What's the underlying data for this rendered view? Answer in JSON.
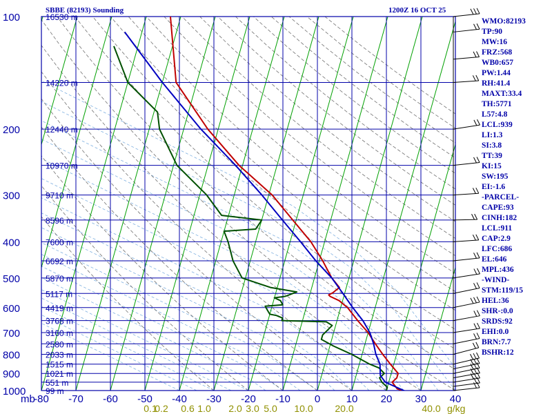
{
  "header": {
    "title": "SBBE (82193) Sounding",
    "datetime": "1200Z 16 OCT 25"
  },
  "indices": [
    "WMO:82193",
    "TP:90",
    "MW:16",
    "FRZ:568",
    "WB0:657",
    "PW:1.44",
    "RH:41.4",
    "MAXT:33.4",
    "TH:5771",
    "L57:4.8",
    "LCL:939",
    "LI:1.3",
    "SI:3.8",
    "TT:39",
    "KI:15",
    "SW:195",
    "EI:-1.6",
    "-PARCEL-",
    "CAPE:93",
    "CINH:182",
    "LCL:911",
    "CAP:2.9",
    "LFC:686",
    "EL:646",
    "MPL:436",
    "-WIND-",
    "STM:119/15",
    "HEL:36",
    "SHR-:0.0",
    "SRDS:92",
    "EHI:0.0",
    "BRN:7.7",
    "BSHR:12"
  ],
  "colors": {
    "axes": "#0000a8",
    "isotherm": "#00a000",
    "dry_adiabat": "#707070",
    "moist_adiabat": "#7fb0e0",
    "mixing_ratio_label": "#909000",
    "temperature": "#c00000",
    "dewpoint": "#005000",
    "parcel": "#0000c0"
  },
  "chart_data": {
    "type": "skew-t",
    "pressure_unit": "mb",
    "pressure_ticks": [
      100,
      200,
      300,
      400,
      500,
      600,
      700,
      800,
      900,
      1000
    ],
    "pressure_range": [
      100,
      1000
    ],
    "temperature_ticks": [
      -80,
      -70,
      -60,
      -50,
      -40,
      -30,
      -20,
      -10,
      0,
      10,
      20,
      30,
      40
    ],
    "temperature_range": [
      -80,
      40
    ],
    "height_labels": [
      {
        "p": 100,
        "label": "16530 m"
      },
      {
        "p": 150,
        "label": "14220 m"
      },
      {
        "p": 200,
        "label": "12440 m"
      },
      {
        "p": 250,
        "label": "10970 m"
      },
      {
        "p": 300,
        "label": "9710 m"
      },
      {
        "p": 350,
        "label": "8596 m"
      },
      {
        "p": 400,
        "label": "7600 m"
      },
      {
        "p": 450,
        "label": "6692 m"
      },
      {
        "p": 500,
        "label": "5870 m"
      },
      {
        "p": 550,
        "label": "5117 m"
      },
      {
        "p": 600,
        "label": "4419 m"
      },
      {
        "p": 650,
        "label": "3768 m"
      },
      {
        "p": 700,
        "label": "3160 m"
      },
      {
        "p": 750,
        "label": "2580 m"
      },
      {
        "p": 800,
        "label": "2033 m"
      },
      {
        "p": 850,
        "label": "1515 m"
      },
      {
        "p": 900,
        "label": "1021 m"
      },
      {
        "p": 950,
        "label": "551 m"
      },
      {
        "p": 1000,
        "label": "99 m"
      }
    ],
    "mixing_ratio_labels": [
      "0.1",
      "0.2",
      "0.6",
      "1.0",
      "2.0",
      "3.0",
      "5.0",
      "10.0",
      "20.0",
      "40.0"
    ],
    "mixing_ratio_unit": "g/kg",
    "temperature": [
      [
        1008,
        26
      ],
      [
        990,
        23
      ],
      [
        950,
        21
      ],
      [
        925,
        22
      ],
      [
        900,
        22
      ],
      [
        850,
        19
      ],
      [
        800,
        16
      ],
      [
        750,
        13
      ],
      [
        700,
        10
      ],
      [
        650,
        6
      ],
      [
        600,
        2
      ],
      [
        575,
        -1
      ],
      [
        560,
        -4
      ],
      [
        555,
        -4.5
      ],
      [
        548,
        -3.5
      ],
      [
        530,
        -2
      ],
      [
        500,
        -5
      ],
      [
        450,
        -9
      ],
      [
        400,
        -14
      ],
      [
        350,
        -21
      ],
      [
        300,
        -29
      ],
      [
        250,
        -41
      ],
      [
        200,
        -53
      ],
      [
        150,
        -66
      ],
      [
        100,
        -73
      ]
    ],
    "dewpoint": [
      [
        1008,
        20
      ],
      [
        980,
        20
      ],
      [
        950,
        18
      ],
      [
        925,
        17
      ],
      [
        900,
        18
      ],
      [
        870,
        16
      ],
      [
        850,
        13
      ],
      [
        800,
        7
      ],
      [
        760,
        1
      ],
      [
        730,
        -3
      ],
      [
        710,
        -3
      ],
      [
        690,
        -2
      ],
      [
        670,
        -1
      ],
      [
        655,
        -3
      ],
      [
        650,
        -16
      ],
      [
        640,
        -16
      ],
      [
        630,
        -18
      ],
      [
        625,
        -20
      ],
      [
        610,
        -21
      ],
      [
        595,
        -22
      ],
      [
        590,
        -17
      ],
      [
        575,
        -18
      ],
      [
        565,
        -20
      ],
      [
        560,
        -17
      ],
      [
        555,
        -16
      ],
      [
        545,
        -14
      ],
      [
        530,
        -22
      ],
      [
        500,
        -31
      ],
      [
        450,
        -35
      ],
      [
        400,
        -38
      ],
      [
        375,
        -40
      ],
      [
        370,
        -31
      ],
      [
        350,
        -30
      ],
      [
        340,
        -42
      ],
      [
        300,
        -48
      ],
      [
        250,
        -59
      ],
      [
        200,
        -67
      ],
      [
        180,
        -69
      ],
      [
        150,
        -80
      ],
      [
        120,
        -87
      ]
    ],
    "parcel": [
      [
        1008,
        26
      ],
      [
        950,
        19
      ],
      [
        911,
        17
      ],
      [
        850,
        16
      ],
      [
        800,
        14
      ],
      [
        750,
        12.5
      ],
      [
        700,
        10.5
      ],
      [
        650,
        7.5
      ],
      [
        600,
        3.5
      ],
      [
        550,
        -0.5
      ],
      [
        500,
        -5
      ],
      [
        450,
        -11
      ],
      [
        400,
        -17
      ],
      [
        350,
        -24
      ],
      [
        300,
        -32
      ],
      [
        250,
        -42
      ],
      [
        200,
        -55
      ],
      [
        150,
        -70
      ],
      [
        110,
        -85
      ]
    ],
    "winds": [
      {
        "p": 1000,
        "dir": 80,
        "spd": 10
      },
      {
        "p": 975,
        "dir": 85,
        "spd": 12
      },
      {
        "p": 950,
        "dir": 90,
        "spd": 15
      },
      {
        "p": 925,
        "dir": 95,
        "spd": 15
      },
      {
        "p": 900,
        "dir": 100,
        "spd": 15
      },
      {
        "p": 875,
        "dir": 100,
        "spd": 15
      },
      {
        "p": 850,
        "dir": 105,
        "spd": 15
      },
      {
        "p": 800,
        "dir": 110,
        "spd": 10
      },
      {
        "p": 750,
        "dir": 100,
        "spd": 10
      },
      {
        "p": 700,
        "dir": 90,
        "spd": 10
      },
      {
        "p": 650,
        "dir": 95,
        "spd": 10
      },
      {
        "p": 600,
        "dir": 100,
        "spd": 15
      },
      {
        "p": 550,
        "dir": 100,
        "spd": 10
      },
      {
        "p": 500,
        "dir": 90,
        "spd": 10
      },
      {
        "p": 450,
        "dir": 80,
        "spd": 10
      },
      {
        "p": 400,
        "dir": 70,
        "spd": 10
      },
      {
        "p": 350,
        "dir": 60,
        "spd": 10
      },
      {
        "p": 300,
        "dir": 70,
        "spd": 10
      },
      {
        "p": 250,
        "dir": 80,
        "spd": 10
      },
      {
        "p": 200,
        "dir": 90,
        "spd": 10
      },
      {
        "p": 150,
        "dir": 70,
        "spd": 10
      },
      {
        "p": 130,
        "dir": 75,
        "spd": 10
      },
      {
        "p": 110,
        "dir": 80,
        "spd": 10
      },
      {
        "p": 100,
        "dir": 80,
        "spd": 15
      }
    ]
  }
}
